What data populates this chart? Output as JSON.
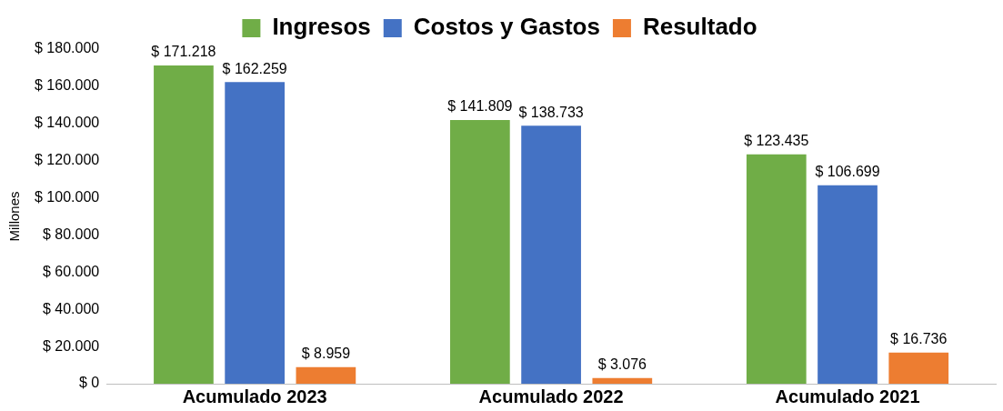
{
  "chart_data": {
    "type": "bar",
    "ylabel": "Millones",
    "categories": [
      "Acumulado 2023",
      "Acumulado 2022",
      "Acumulado 2021"
    ],
    "series": [
      {
        "name": "Ingresos",
        "color": "#70ad47",
        "values": [
          171218,
          141809,
          123435
        ],
        "value_labels": [
          "$ 171.218",
          "$ 141.809",
          "$ 123.435"
        ]
      },
      {
        "name": "Costos y Gastos",
        "color": "#4472c4",
        "values": [
          162259,
          138733,
          106699
        ],
        "value_labels": [
          "$ 162.259",
          "$ 138.733",
          "$ 106.699"
        ]
      },
      {
        "name": "Resultado",
        "color": "#ed7d31",
        "values": [
          8959,
          3076,
          16736
        ],
        "value_labels": [
          "$ 8.959",
          "$ 3.076",
          "$ 16.736"
        ]
      }
    ],
    "ylim": [
      0,
      180000
    ],
    "yticks": [
      {
        "value": 0,
        "label": "$ 0"
      },
      {
        "value": 20000,
        "label": "$ 20.000"
      },
      {
        "value": 40000,
        "label": "$ 40.000"
      },
      {
        "value": 60000,
        "label": "$ 60.000"
      },
      {
        "value": 80000,
        "label": "$ 80.000"
      },
      {
        "value": 100000,
        "label": "$ 100.000"
      },
      {
        "value": 120000,
        "label": "$ 120.000"
      },
      {
        "value": 140000,
        "label": "$ 140.000"
      },
      {
        "value": 160000,
        "label": "$ 160.000"
      },
      {
        "value": 180000,
        "label": "$ 180.000"
      }
    ],
    "grid": false,
    "legend": "top"
  }
}
